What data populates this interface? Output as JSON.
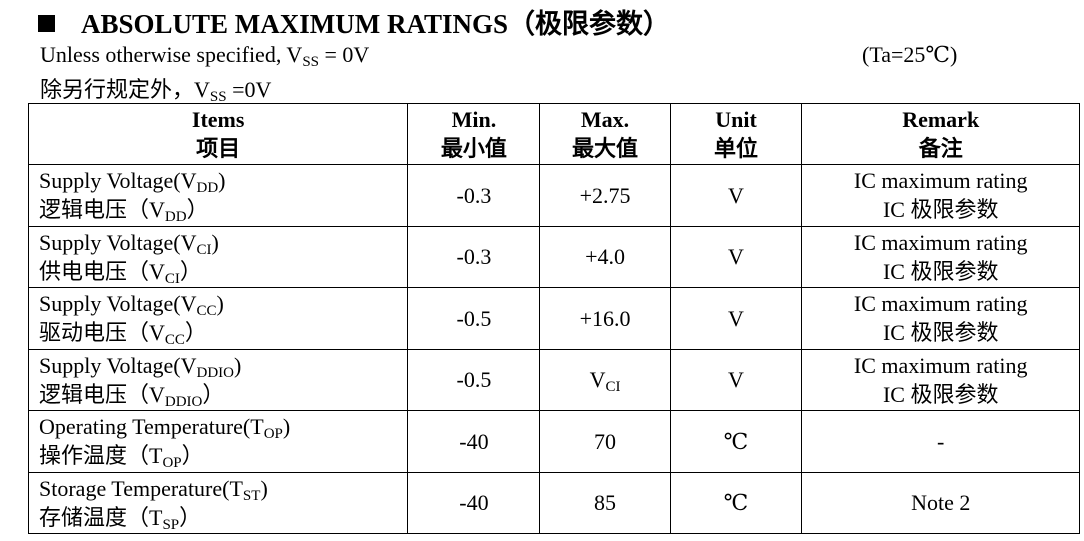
{
  "header": {
    "title": "ABSOLUTE MAXIMUM RATINGS（极限参数）",
    "note_en": {
      "main": "Unless otherwise specified, V",
      "sub": "SS",
      "tail": " = 0V"
    },
    "condition": "(Ta=25℃)",
    "note_cn": {
      "main": "除另行规定外，V",
      "sub": "SS",
      "tail": " =0V"
    }
  },
  "table": {
    "columns": [
      [
        "Items",
        "项目"
      ],
      [
        "Min.",
        "最小值"
      ],
      [
        "Max.",
        "最大值"
      ],
      [
        "Unit",
        "单位"
      ],
      [
        "Remark",
        "备注"
      ]
    ],
    "rows": [
      {
        "item_en": {
          "main": "Supply Voltage(V",
          "sub": "DD",
          "tail": ")"
        },
        "item_cn": {
          "main": "逻辑电压（V",
          "sub": "DD",
          "tail": "）"
        },
        "min": "-0.3",
        "max": "+2.75",
        "unit": "V",
        "remark": [
          "IC maximum rating",
          "IC 极限参数"
        ]
      },
      {
        "item_en": {
          "main": "Supply Voltage(V",
          "sub": "CI",
          "tail": ")"
        },
        "item_cn": {
          "main": "供电电压（V",
          "sub": "CI",
          "tail": "）"
        },
        "min": "-0.3",
        "max": "+4.0",
        "unit": "V",
        "remark": [
          "IC maximum rating",
          "IC 极限参数"
        ]
      },
      {
        "item_en": {
          "main": "Supply Voltage(V",
          "sub": "CC",
          "tail": ")"
        },
        "item_cn": {
          "main": "驱动电压（V",
          "sub": "CC",
          "tail": "）"
        },
        "min": "-0.5",
        "max": "+16.0",
        "unit": "V",
        "remark": [
          "IC maximum rating",
          "IC 极限参数"
        ]
      },
      {
        "item_en": {
          "main": "Supply Voltage(V",
          "sub": "DDIO",
          "tail": ")"
        },
        "item_cn": {
          "main": "逻辑电压（V",
          "sub": "DDIO",
          "tail": "）"
        },
        "min": "-0.5",
        "max": {
          "main": "V",
          "sub": "CI"
        },
        "unit": "V",
        "remark": [
          "IC maximum rating",
          "IC 极限参数"
        ]
      },
      {
        "item_en": {
          "main": "Operating Temperature(T",
          "sub": "OP",
          "tail": ")"
        },
        "item_cn": {
          "main": "操作温度（T",
          "sub": "OP",
          "tail": "）"
        },
        "min": "-40",
        "max": "70",
        "unit": "℃",
        "remark": [
          "-"
        ]
      },
      {
        "item_en": {
          "main": "Storage Temperature(T",
          "sub": "ST",
          "tail": ")"
        },
        "item_cn": {
          "main": "存储温度（T",
          "sub": "SP",
          "tail": "）"
        },
        "min": "-40",
        "max": "85",
        "unit": "℃",
        "remark": [
          "Note 2"
        ]
      }
    ]
  }
}
